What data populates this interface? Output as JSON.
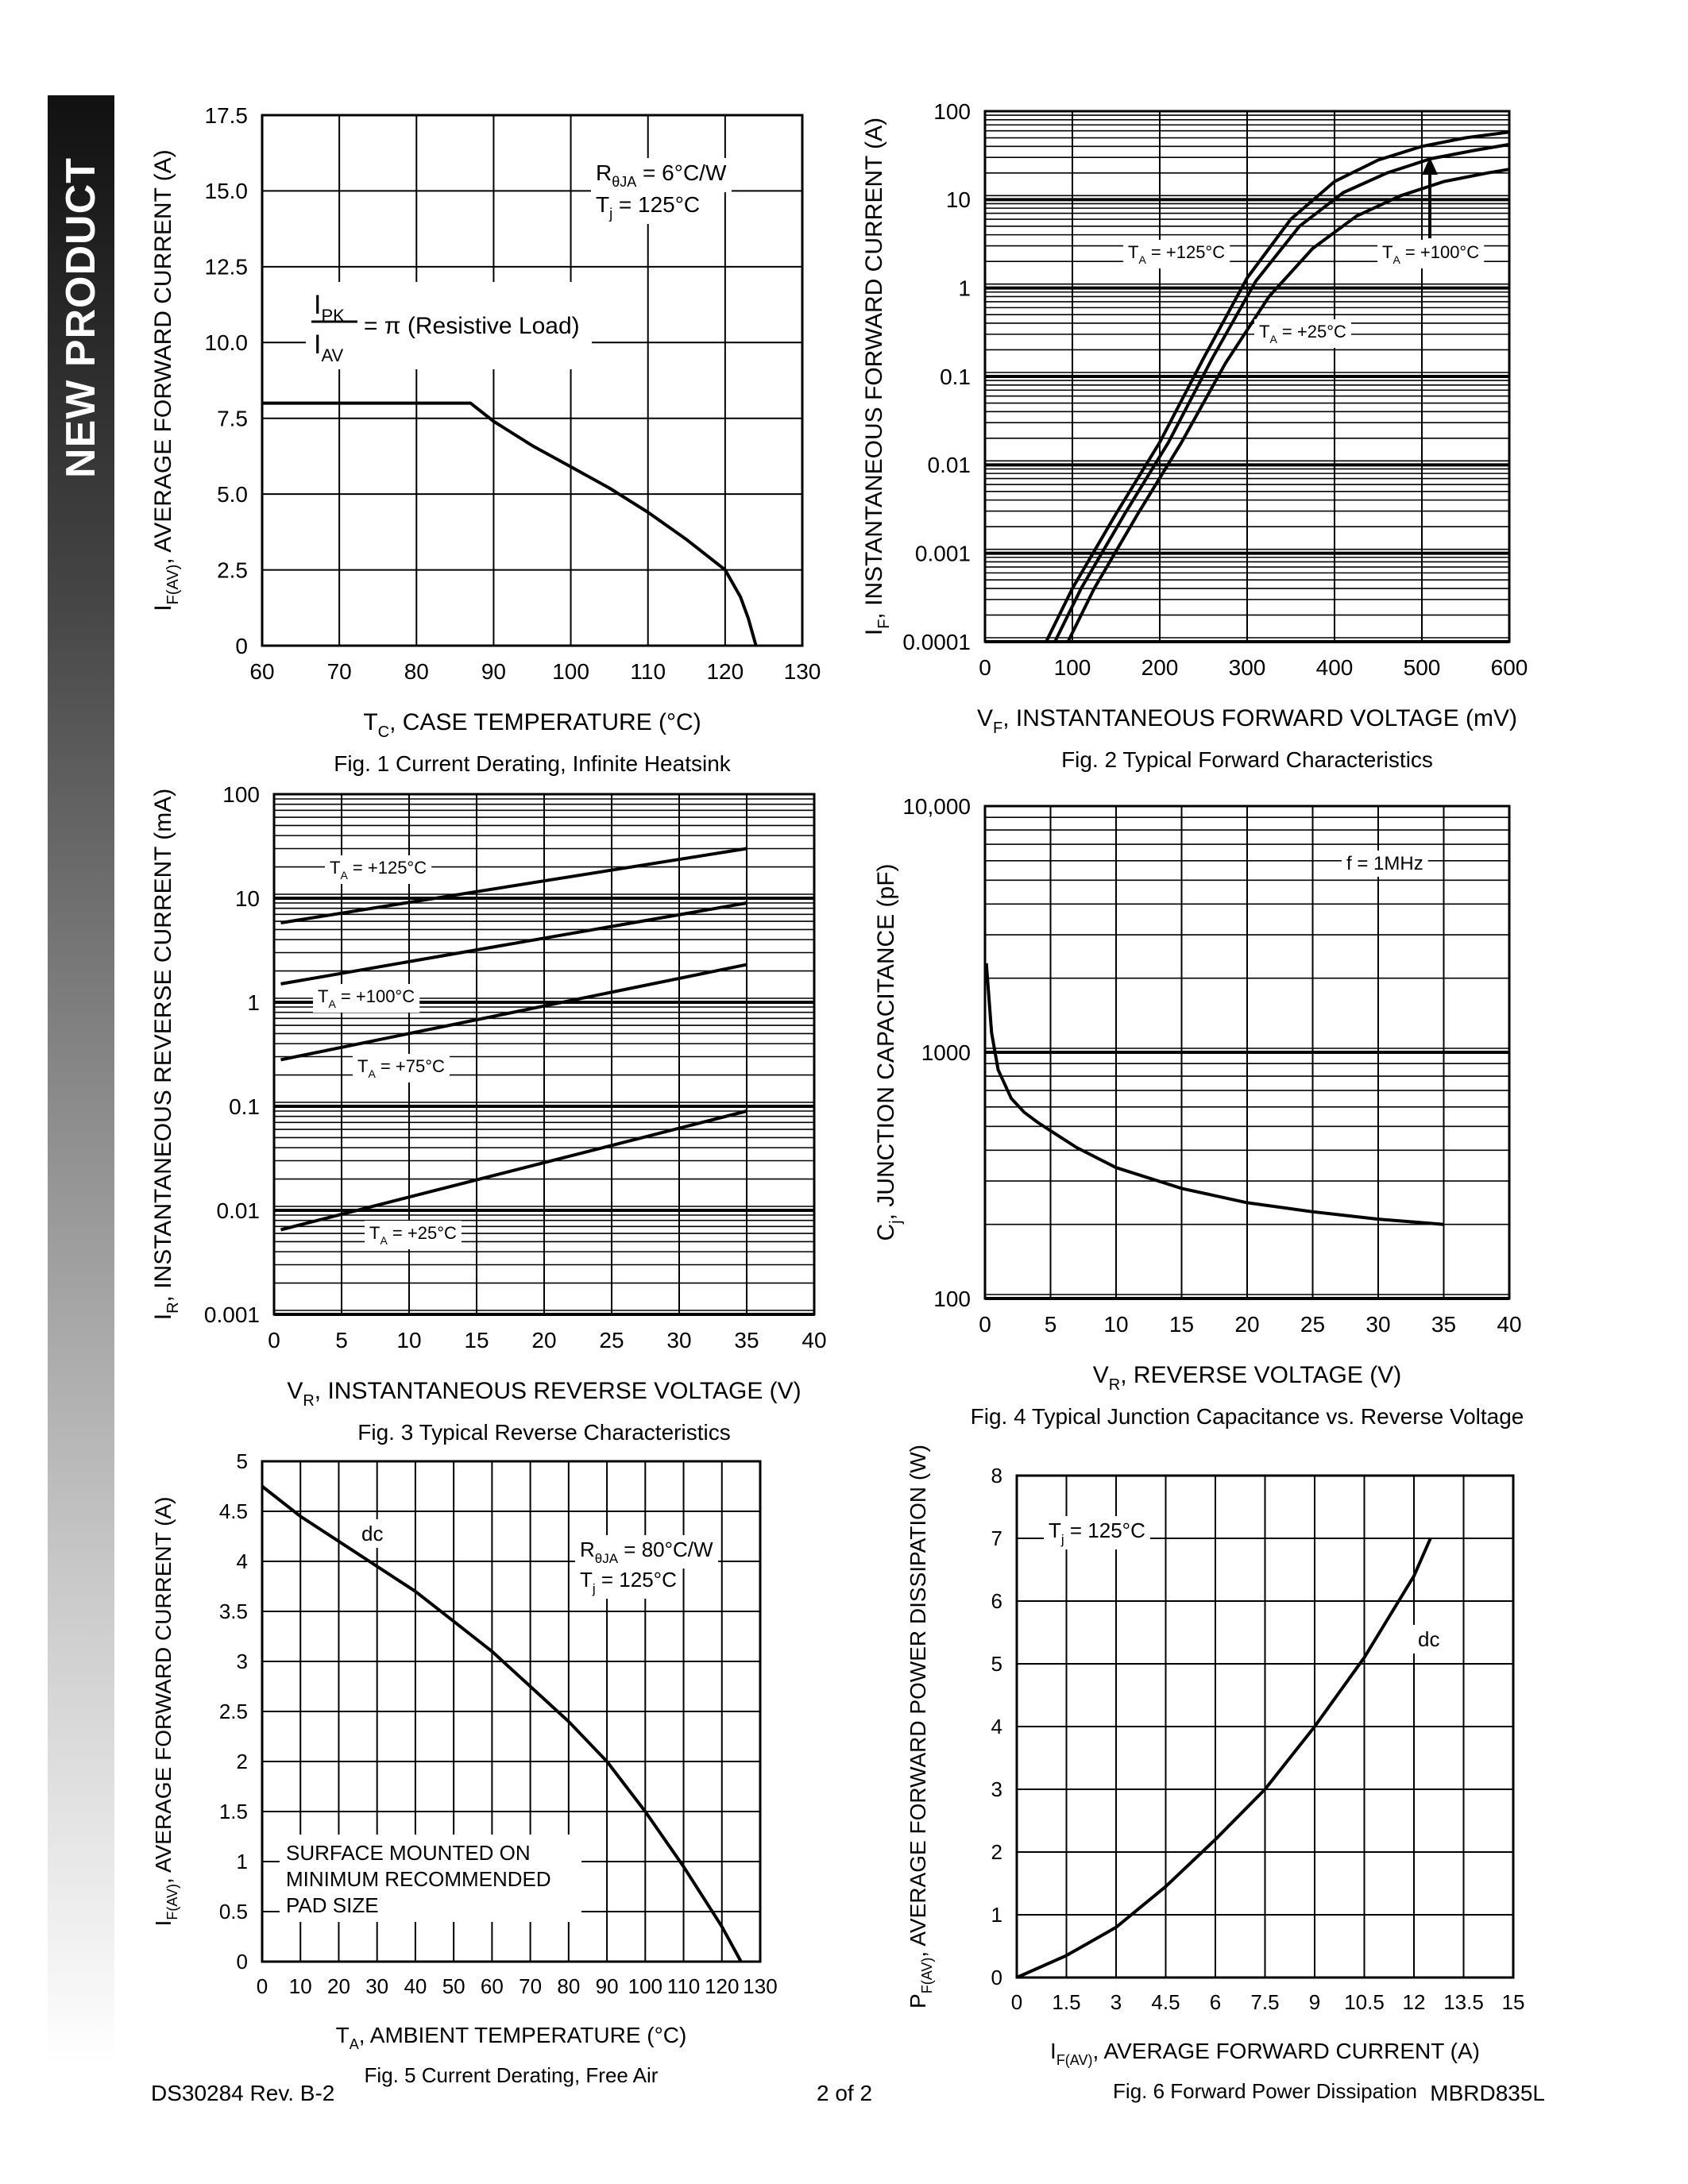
{
  "sidebar": {
    "label": "NEW PRODUCT"
  },
  "footer": {
    "doc": "DS30284 Rev. B-2",
    "page": "2 of 2",
    "part": "MBRD835L"
  },
  "chart_data": [
    {
      "id": "fig1",
      "type": "line",
      "caption": "Fig. 1  Current Derating, Infinite Heatsink",
      "xlabel": "T_C, CASE TEMPERATURE (°C)",
      "ylabel": "I_F(AV), AVERAGE FORWARD CURRENT (A)",
      "xlim": [
        60,
        130
      ],
      "ylim": [
        0,
        17.5
      ],
      "xticks": [
        60,
        70,
        80,
        90,
        100,
        110,
        120,
        130
      ],
      "yticks": [
        0,
        2.5,
        5.0,
        7.5,
        10.0,
        12.5,
        15.0,
        17.5
      ],
      "ytick_labels": [
        "0",
        "2.5",
        "5.0",
        "7.5",
        "10.0",
        "12.5",
        "15.0",
        "17.5"
      ],
      "grid": true,
      "annotations": [
        "R_θJA = 6°C/W",
        "T_j = 125°C",
        "I_PK / I_AV = π (Resistive Load)"
      ],
      "series": [
        {
          "x": [
            60,
            87,
            90,
            95,
            100,
            105,
            110,
            115,
            120,
            122,
            123,
            124
          ],
          "y": [
            8.0,
            8.0,
            7.4,
            6.6,
            5.9,
            5.2,
            4.4,
            3.5,
            2.5,
            1.6,
            0.9,
            0
          ]
        }
      ]
    },
    {
      "id": "fig2",
      "type": "line",
      "caption": "Fig. 2  Typical Forward Characteristics",
      "xlabel": "V_F, INSTANTANEOUS FORWARD VOLTAGE (mV)",
      "ylabel": "I_F, INSTANTANEOUS FORWARD CURRENT (A)",
      "xlim": [
        0,
        600
      ],
      "ylim": [
        0.0001,
        100
      ],
      "yscale": "log",
      "xticks": [
        0,
        100,
        200,
        300,
        400,
        500,
        600
      ],
      "yticks": [
        0.0001,
        0.001,
        0.01,
        0.1,
        1,
        10,
        100
      ],
      "ytick_labels": [
        "0.0001",
        "0.001",
        "0.01",
        "0.1",
        "1",
        "10",
        "100"
      ],
      "grid": true,
      "annotations": [
        "T_A = +125°C",
        "T_A = +100°C",
        "T_A = +25°C"
      ],
      "series": [
        {
          "name": "T_A = +125°C",
          "x": [
            70,
            100,
            150,
            200,
            250,
            300,
            350,
            400,
            450,
            500,
            550,
            600
          ],
          "y": [
            0.0001,
            0.0004,
            0.0028,
            0.018,
            0.16,
            1.3,
            6,
            16,
            28,
            40,
            50,
            58
          ]
        },
        {
          "name": "T_A = +100°C",
          "x": [
            80,
            110,
            160,
            210,
            260,
            310,
            360,
            410,
            460,
            510,
            560,
            600
          ],
          "y": [
            0.0001,
            0.0004,
            0.0028,
            0.018,
            0.16,
            1.2,
            5,
            12,
            20,
            29,
            36,
            42
          ]
        },
        {
          "name": "T_A = +25°C",
          "x": [
            95,
            125,
            175,
            225,
            275,
            325,
            375,
            425,
            475,
            525,
            575,
            600
          ],
          "y": [
            0.0001,
            0.0004,
            0.0028,
            0.018,
            0.14,
            0.8,
            2.8,
            6.5,
            11,
            16,
            20,
            22
          ]
        }
      ]
    },
    {
      "id": "fig3",
      "type": "line",
      "caption": "Fig. 3  Typical Reverse Characteristics",
      "xlabel": "V_R, INSTANTANEOUS REVERSE VOLTAGE (V)",
      "ylabel": "I_R, INSTANTANEOUS REVERSE CURRENT (mA)",
      "xlim": [
        0,
        40
      ],
      "ylim": [
        0.001,
        100
      ],
      "yscale": "log",
      "xticks": [
        0,
        5,
        10,
        15,
        20,
        25,
        30,
        35,
        40
      ],
      "yticks": [
        0.001,
        0.01,
        0.1,
        1,
        10,
        100
      ],
      "ytick_labels": [
        "0.001",
        "0.01",
        "0.1",
        "1",
        "10",
        "100"
      ],
      "grid": true,
      "annotations": [
        "T_A = +125°C",
        "T_A = +100°C",
        "T_A = +75°C",
        "T_A = +25°C"
      ],
      "series": [
        {
          "name": "T_A = +125°C",
          "x": [
            0.5,
            35
          ],
          "y": [
            5.8,
            30
          ]
        },
        {
          "name": "T_A = +100°C",
          "x": [
            0.5,
            35
          ],
          "y": [
            1.5,
            9
          ]
        },
        {
          "name": "T_A = +75°C",
          "x": [
            0.5,
            35
          ],
          "y": [
            0.28,
            2.3
          ]
        },
        {
          "name": "T_A = +25°C",
          "x": [
            0.5,
            35
          ],
          "y": [
            0.0065,
            0.09
          ]
        }
      ]
    },
    {
      "id": "fig4",
      "type": "line",
      "caption": "Fig. 4  Typical Junction Capacitance vs. Reverse Voltage",
      "xlabel": "V_R, REVERSE VOLTAGE (V)",
      "ylabel": "C_j, JUNCTION CAPACITANCE (pF)",
      "xlim": [
        0,
        40
      ],
      "ylim": [
        100,
        10000
      ],
      "yscale": "log",
      "xticks": [
        0,
        5,
        10,
        15,
        20,
        25,
        30,
        35,
        40
      ],
      "yticks": [
        100,
        1000,
        10000
      ],
      "ytick_labels": [
        "100",
        "1000",
        "10,000"
      ],
      "grid": true,
      "annotations": [
        "f = 1MHz"
      ],
      "series": [
        {
          "x": [
            0.1,
            0.5,
            1,
            2,
            3,
            4,
            5,
            7,
            10,
            15,
            20,
            25,
            30,
            35
          ],
          "y": [
            2300,
            1200,
            850,
            650,
            570,
            520,
            480,
            410,
            340,
            280,
            245,
            225,
            210,
            200
          ]
        }
      ]
    },
    {
      "id": "fig5",
      "type": "line",
      "caption": "Fig. 5  Current Derating, Free Air",
      "xlabel": "T_A, AMBIENT TEMPERATURE (°C)",
      "ylabel": "I_F(AV), AVERAGE FORWARD CURRENT (A)",
      "xlim": [
        0,
        130
      ],
      "ylim": [
        0,
        5
      ],
      "xticks": [
        0,
        10,
        20,
        30,
        40,
        50,
        60,
        70,
        80,
        90,
        100,
        110,
        120,
        130
      ],
      "yticks": [
        0,
        0.5,
        1,
        1.5,
        2,
        2.5,
        3,
        3.5,
        4,
        4.5,
        5
      ],
      "ytick_labels": [
        "0",
        "0.5",
        "1",
        "1.5",
        "2",
        "2.5",
        "3",
        "3.5",
        "4",
        "4.5",
        "5"
      ],
      "grid": true,
      "annotations": [
        "dc",
        "R_θJA = 80°C/W",
        "T_j = 125°C",
        "SURFACE MOUNTED ON",
        "MINIMUM RECOMMENDED",
        "PAD SIZE"
      ],
      "series": [
        {
          "name": "dc",
          "x": [
            0,
            10,
            20,
            30,
            40,
            50,
            60,
            70,
            80,
            90,
            100,
            110,
            120,
            125
          ],
          "y": [
            4.75,
            4.45,
            4.2,
            3.95,
            3.7,
            3.4,
            3.1,
            2.75,
            2.4,
            2.0,
            1.5,
            0.95,
            0.35,
            0
          ]
        }
      ]
    },
    {
      "id": "fig6",
      "type": "line",
      "caption": "Fig. 6  Forward Power Dissipation",
      "xlabel": "I_F(AV), AVERAGE FORWARD CURRENT (A)",
      "ylabel": "P_F(AV), AVERAGE FORWARD POWER DISSIPATION (W)",
      "xlim": [
        0,
        15
      ],
      "ylim": [
        0,
        8
      ],
      "xticks": [
        0,
        1.5,
        3,
        4.5,
        6,
        7.5,
        9,
        10.5,
        12,
        13.5,
        15
      ],
      "xtick_labels": [
        "0",
        "1.5",
        "3",
        "4.5",
        "6",
        "7.5",
        "9",
        "10.5",
        "12",
        "13.5",
        "15"
      ],
      "yticks": [
        0,
        1,
        2,
        3,
        4,
        5,
        6,
        7,
        8
      ],
      "grid": true,
      "annotations": [
        "T_j = 125°C",
        "dc"
      ],
      "series": [
        {
          "name": "dc",
          "x": [
            0,
            1.5,
            3,
            4.5,
            6,
            7.5,
            9,
            10.5,
            12,
            12.5
          ],
          "y": [
            0,
            0.35,
            0.8,
            1.45,
            2.2,
            3.0,
            4.0,
            5.1,
            6.4,
            7.0
          ]
        }
      ]
    }
  ]
}
